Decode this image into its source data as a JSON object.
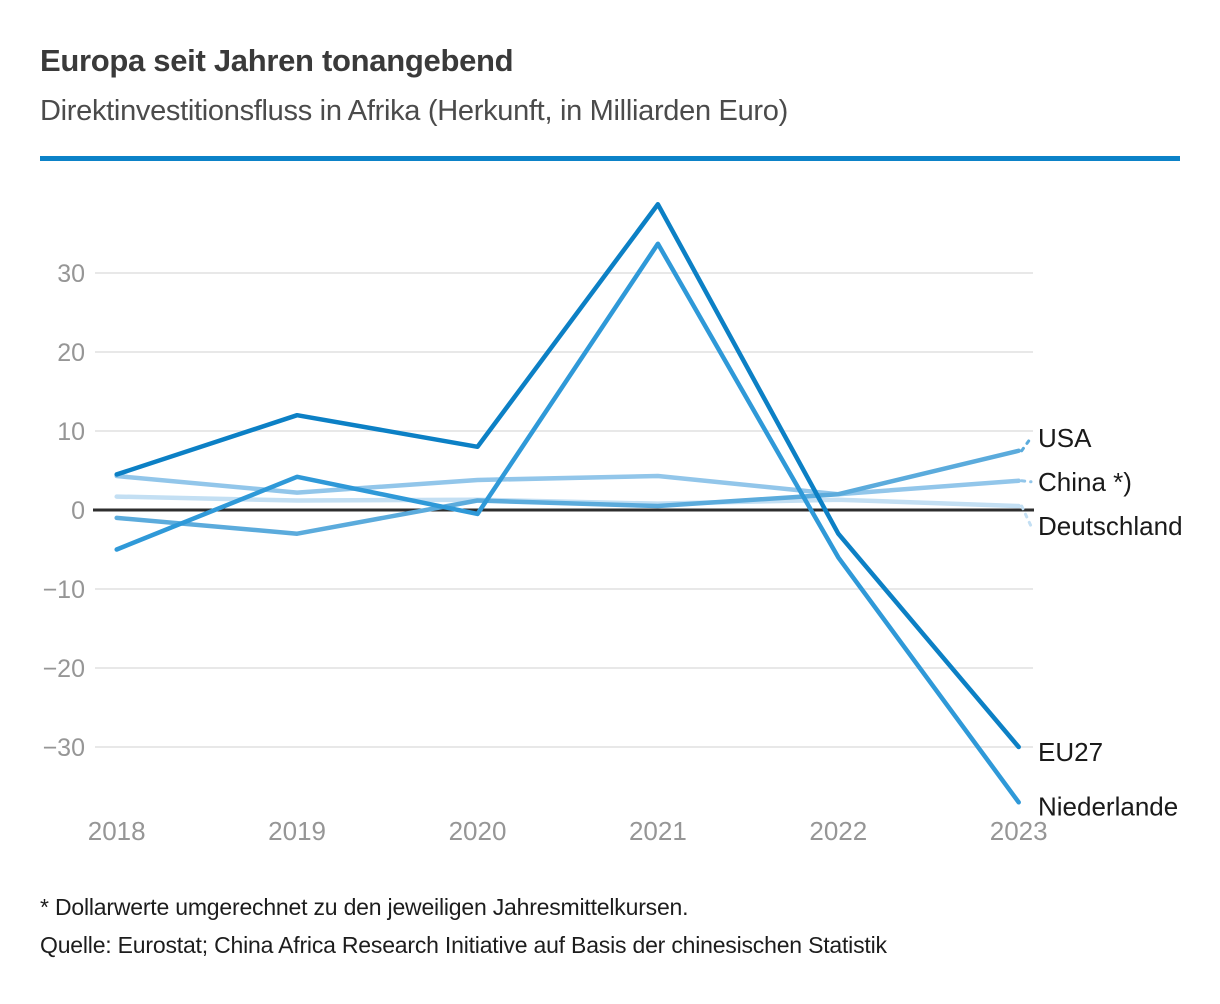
{
  "header": {
    "title": "Europa seit Jahren tonangebend",
    "subtitle": "Direktinvestitionsfluss in Afrika (Herkunft, in Milliarden Euro)",
    "accent_color": "#0c82c8"
  },
  "chart_data": {
    "type": "line",
    "title": "Europa seit Jahren tonangebend",
    "subtitle": "Direktinvestitionsfluss in Afrika (Herkunft, in Milliarden Euro)",
    "unit": "Milliarden Euro",
    "x": [
      "2018",
      "2019",
      "2020",
      "2021",
      "2022",
      "2023"
    ],
    "yticks": [
      30,
      20,
      10,
      0,
      -10,
      -20,
      -30
    ],
    "ylim": [
      -39,
      40
    ],
    "grid": "horizontal",
    "zero_baseline": true,
    "legend_position": "right-edge-labels",
    "series": [
      {
        "name": "USA",
        "label": "USA",
        "color": "#5babdc",
        "values": [
          -1,
          -3,
          1.2,
          0.5,
          2,
          7.5
        ]
      },
      {
        "name": "China",
        "label": "China *)",
        "color": "#92c6ea",
        "values": [
          4.3,
          2.2,
          3.8,
          4.3,
          2,
          3.7
        ]
      },
      {
        "name": "Deutschland",
        "label": "Deutschland",
        "color": "#c3dff3",
        "values": [
          1.7,
          1.2,
          1.3,
          0.8,
          1.3,
          0.5
        ]
      },
      {
        "name": "EU27",
        "label": "EU27",
        "color": "#0c80c5",
        "values": [
          4.5,
          12,
          8,
          38.7,
          -3,
          -30
        ]
      },
      {
        "name": "Niederlande",
        "label": "Niederlande",
        "color": "#2f99d8",
        "values": [
          -5,
          4.2,
          -0.5,
          33.7,
          -6,
          -37
        ]
      }
    ],
    "colors": {
      "grid": "#e8e8e8",
      "zero_line": "#2e2e2e",
      "axis_text": "#969696",
      "label_text": "#1a1a1a"
    }
  },
  "footnotes": {
    "asterisk": "* Dollarwerte umgerechnet zu den jeweiligen Jahresmittelkursen.",
    "source": "Quelle: Eurostat; China Africa Research Initiative auf Basis der chinesischen Statistik"
  }
}
